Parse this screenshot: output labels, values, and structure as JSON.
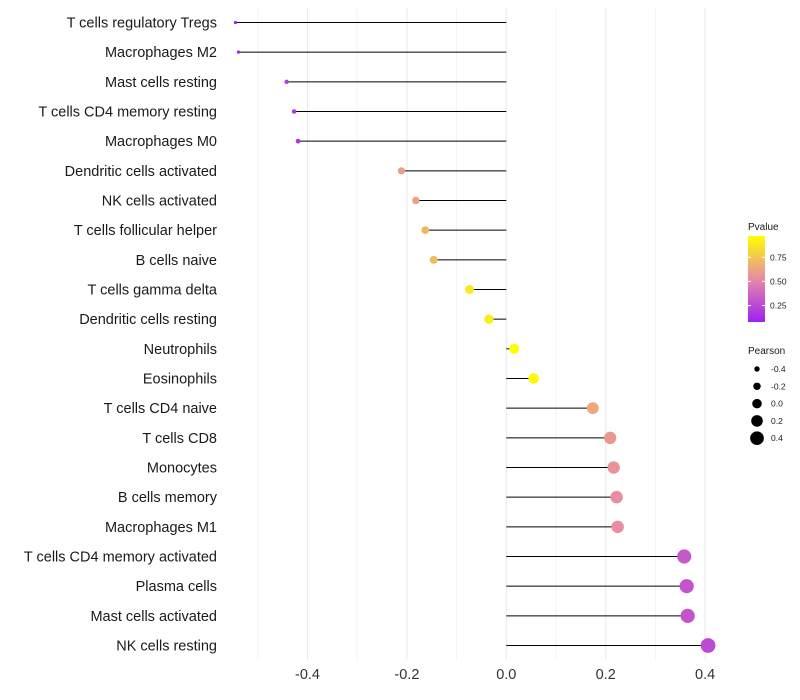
{
  "chart_data": {
    "type": "lollipop",
    "title": "",
    "xlabel": "",
    "ylabel": "",
    "xlim": [
      -0.56,
      0.43
    ],
    "x_ticks": [
      "-0.4",
      "-0.2",
      "0.0",
      "0.2",
      "0.4"
    ],
    "categories": [
      "T cells regulatory  Tregs",
      "Macrophages M2",
      "Mast cells resting",
      "T cells CD4 memory resting",
      "Macrophages M0",
      "Dendritic cells activated",
      "NK cells activated",
      "T cells follicular helper",
      "B cells naive",
      "T cells gamma delta",
      "Dendritic cells resting",
      "Neutrophils",
      "Eosinophils",
      "T cells CD4 naive",
      "T cells CD8",
      "Monocytes",
      "B cells memory",
      "Macrophages M1",
      "T cells CD4 memory activated",
      "Plasma cells",
      "Mast cells activated",
      "NK cells resting"
    ],
    "pearson": [
      -0.545,
      -0.539,
      -0.442,
      -0.427,
      -0.419,
      -0.211,
      -0.182,
      -0.163,
      -0.146,
      -0.074,
      -0.035,
      0.016,
      0.055,
      0.174,
      0.209,
      0.216,
      0.222,
      0.224,
      0.358,
      0.363,
      0.365,
      0.406
    ],
    "pvalue": [
      0.08,
      0.09,
      0.2,
      0.18,
      0.17,
      0.6,
      0.62,
      0.7,
      0.72,
      0.88,
      0.9,
      0.97,
      0.95,
      0.64,
      0.58,
      0.56,
      0.54,
      0.54,
      0.32,
      0.3,
      0.3,
      0.26
    ],
    "legend": {
      "color": {
        "title": "Pvalue",
        "ticks": [
          "0.25",
          "0.50",
          "0.75"
        ],
        "tick_values": [
          0.25,
          0.5,
          0.75
        ],
        "range": [
          0.08,
          0.97
        ],
        "low_color": "#a020f0",
        "mid_color": "#e78aa6",
        "high_color": "#ffff00"
      },
      "size": {
        "title": "Pearson",
        "labels": [
          "-0.4",
          "-0.2",
          "0.0",
          "0.2",
          "0.4"
        ],
        "values": [
          -0.4,
          -0.2,
          0.0,
          0.2,
          0.4
        ]
      }
    }
  }
}
